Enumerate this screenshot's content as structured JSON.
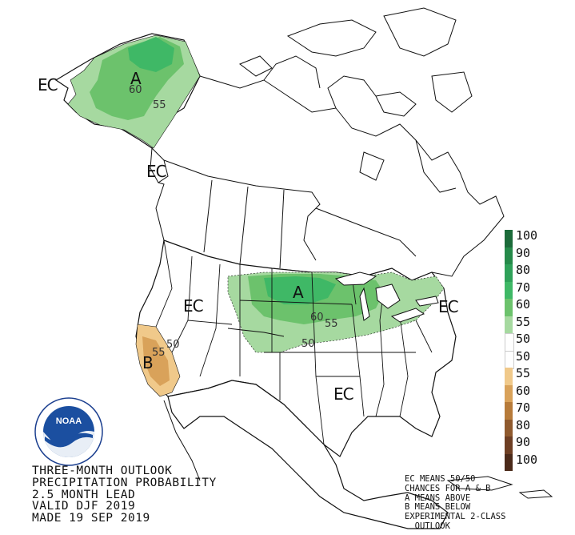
{
  "map_labels": {
    "ec_alaska": "EC",
    "ec_bc": "EC",
    "ec_west": "EC",
    "ec_east": "EC",
    "ec_south": "EC",
    "a_alaska": "A",
    "a_plains": "A",
    "b_california": "B"
  },
  "contour_labels": {
    "ak_60": "60",
    "ak_55": "55",
    "plains_60": "60",
    "plains_55": "55",
    "plains_50": "50",
    "ca_55": "55",
    "ca_50": "50"
  },
  "legend": {
    "above": [
      {
        "label": "100",
        "color": "#1c6b3a"
      },
      {
        "label": "90",
        "color": "#268a4a"
      },
      {
        "label": "80",
        "color": "#2fa159"
      },
      {
        "label": "70",
        "color": "#3fb866"
      },
      {
        "label": "60",
        "color": "#6cc26c"
      },
      {
        "label": "55",
        "color": "#a6d9a0"
      }
    ],
    "neutral": [
      {
        "label": "50",
        "color": "#ffffff"
      },
      {
        "label": "50",
        "color": "#ffffff"
      }
    ],
    "below": [
      {
        "label": "55",
        "color": "#f0c98a"
      },
      {
        "label": "60",
        "color": "#d9a25a"
      },
      {
        "label": "70",
        "color": "#b77b3a"
      },
      {
        "label": "80",
        "color": "#8f5a2e"
      },
      {
        "label": "90",
        "color": "#6e3f24"
      },
      {
        "label": "100",
        "color": "#4b2a1a"
      }
    ]
  },
  "title": {
    "line1": "THREE-MONTH OUTLOOK",
    "line2": "PRECIPITATION PROBABILITY",
    "line3": "2.5 MONTH LEAD",
    "line4": "VALID DJF 2019",
    "line5": "MADE 19 SEP 2019"
  },
  "notes": {
    "line1": "EC MEANS 50/50",
    "line2": "CHANCES FOR A & B",
    "line3": "A MEANS ABOVE",
    "line4": "B MEANS BELOW",
    "line5": "EXPERIMENTAL 2-CLASS",
    "line6": "  OUTLOOK"
  },
  "logo": {
    "text": "NOAA",
    "ring_text": "NATIONAL OCEANIC AND ATMOSPHERIC ADMINISTRATION · U.S. DEPARTMENT OF COMMERCE"
  },
  "colors": {
    "above_light": "#a6d9a0",
    "above_mid": "#6cc26c",
    "above_dark": "#3fb866",
    "below_light": "#f0c98a",
    "below_mid": "#d9a25a",
    "outline": "#111111"
  }
}
